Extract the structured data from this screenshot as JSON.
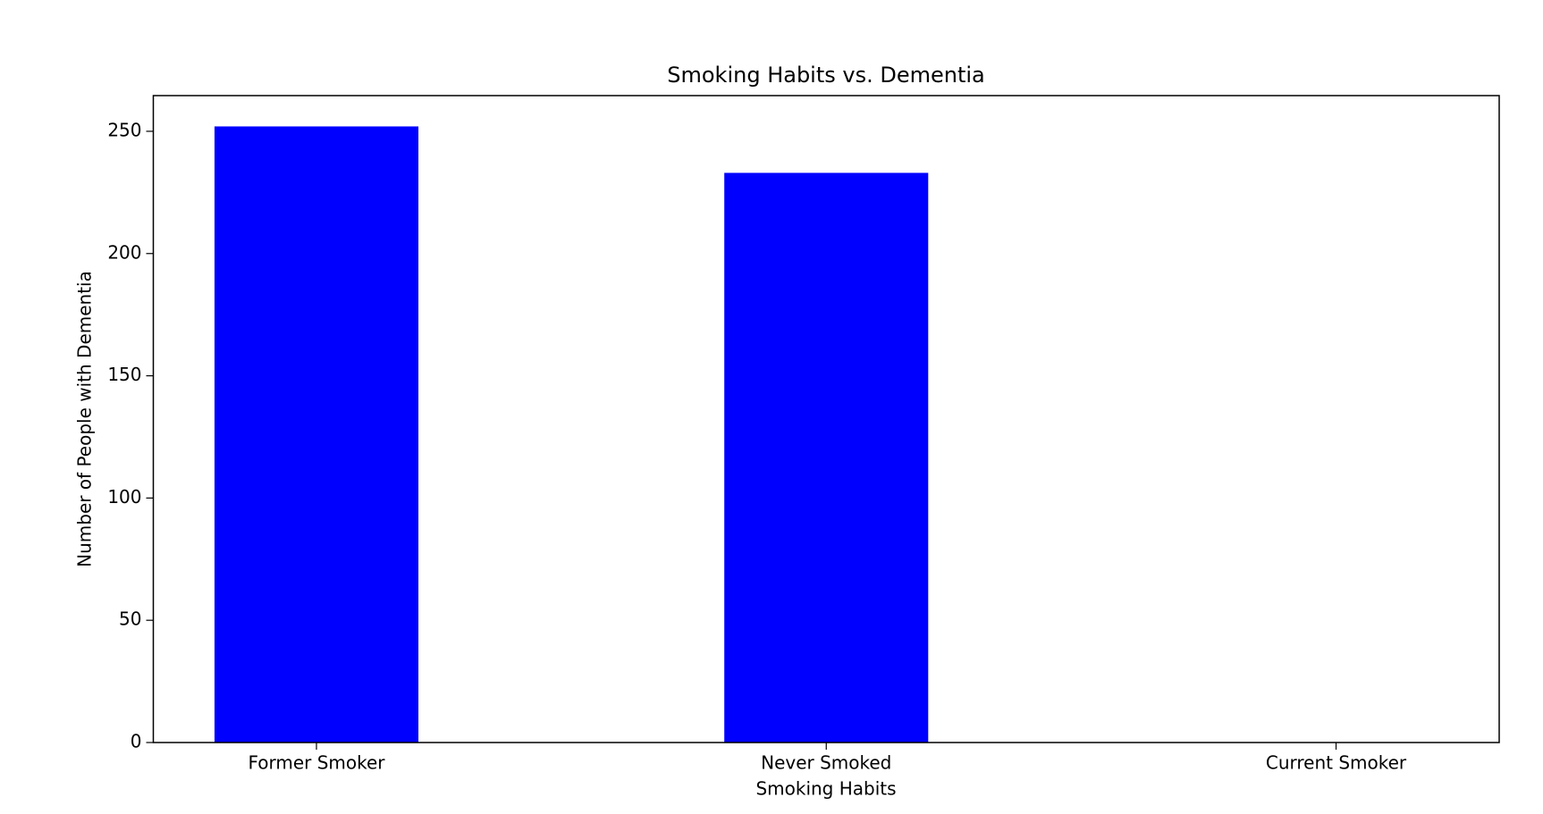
{
  "chart_data": {
    "type": "bar",
    "title": "Smoking Habits vs. Dementia",
    "x_label": "Smoking Habits",
    "y_label": "Number of People with Dementia",
    "categories": [
      "Former Smoker",
      "Never Smoked",
      "Current Smoker"
    ],
    "values": [
      252,
      233,
      0
    ],
    "color": "#0000ff",
    "ylim": [
      0,
      264.6
    ],
    "yticks": [
      0,
      50,
      100,
      150,
      200,
      250
    ],
    "grid": false
  }
}
